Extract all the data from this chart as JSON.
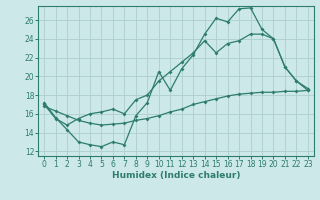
{
  "xlabel": "Humidex (Indice chaleur)",
  "bg_color": "#cce8e8",
  "grid_color": "#aecece",
  "line_color": "#2e7c70",
  "xlim": [
    -0.5,
    23.5
  ],
  "ylim": [
    11.5,
    27.5
  ],
  "xticks": [
    0,
    1,
    2,
    3,
    4,
    5,
    6,
    7,
    8,
    9,
    10,
    11,
    12,
    13,
    14,
    15,
    16,
    17,
    18,
    19,
    20,
    21,
    22,
    23
  ],
  "yticks": [
    12,
    14,
    16,
    18,
    20,
    22,
    24,
    26
  ],
  "line1_x": [
    0,
    1,
    2,
    3,
    4,
    5,
    6,
    7,
    8,
    9,
    10,
    11,
    12,
    13,
    14,
    15,
    16,
    17,
    18,
    19,
    20,
    21,
    22,
    23
  ],
  "line1_y": [
    17.2,
    15.6,
    14.3,
    13.0,
    12.7,
    12.5,
    13.0,
    12.7,
    15.8,
    17.2,
    20.5,
    18.5,
    20.8,
    22.3,
    24.5,
    26.2,
    25.8,
    27.2,
    27.3,
    25.0,
    24.0,
    21.0,
    19.5,
    18.5
  ],
  "line2_x": [
    0,
    1,
    2,
    3,
    4,
    5,
    6,
    7,
    8,
    9,
    10,
    11,
    12,
    13,
    14,
    15,
    16,
    17,
    18,
    19,
    20,
    21,
    22,
    23
  ],
  "line2_y": [
    17.0,
    15.5,
    14.8,
    15.5,
    16.0,
    16.2,
    16.5,
    16.0,
    17.5,
    18.0,
    19.5,
    20.5,
    21.5,
    22.5,
    23.8,
    22.5,
    23.5,
    23.8,
    24.5,
    24.5,
    24.0,
    21.0,
    19.5,
    18.7
  ],
  "line3_x": [
    0,
    1,
    2,
    3,
    4,
    5,
    6,
    7,
    8,
    9,
    10,
    11,
    12,
    13,
    14,
    15,
    16,
    17,
    18,
    19,
    20,
    21,
    22,
    23
  ],
  "line3_y": [
    16.8,
    16.3,
    15.8,
    15.3,
    15.0,
    14.8,
    14.9,
    15.0,
    15.3,
    15.5,
    15.8,
    16.2,
    16.5,
    17.0,
    17.3,
    17.6,
    17.9,
    18.1,
    18.2,
    18.3,
    18.3,
    18.4,
    18.4,
    18.5
  ]
}
